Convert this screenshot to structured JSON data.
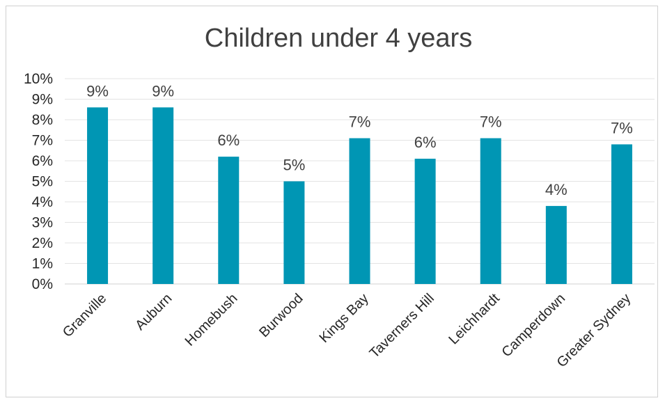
{
  "chart_data": {
    "type": "bar",
    "title": "Children under 4 years",
    "categories": [
      "Granville",
      "Auburn",
      "Homebush",
      "Burwood",
      "Kings Bay",
      "Taverners Hill",
      "Leichhardt",
      "Camperdown",
      "Greater Sydney"
    ],
    "values": [
      8.6,
      8.6,
      6.2,
      5.0,
      7.1,
      6.1,
      7.1,
      3.8,
      6.8
    ],
    "data_labels": [
      "9%",
      "9%",
      "6%",
      "5%",
      "7%",
      "6%",
      "7%",
      "4%",
      "7%"
    ],
    "ylim": [
      0,
      10
    ],
    "yticks": [
      "0%",
      "1%",
      "2%",
      "3%",
      "4%",
      "5%",
      "6%",
      "7%",
      "8%",
      "9%",
      "10%"
    ],
    "grid": true,
    "legend": "none",
    "bar_color": "#0096B4"
  }
}
